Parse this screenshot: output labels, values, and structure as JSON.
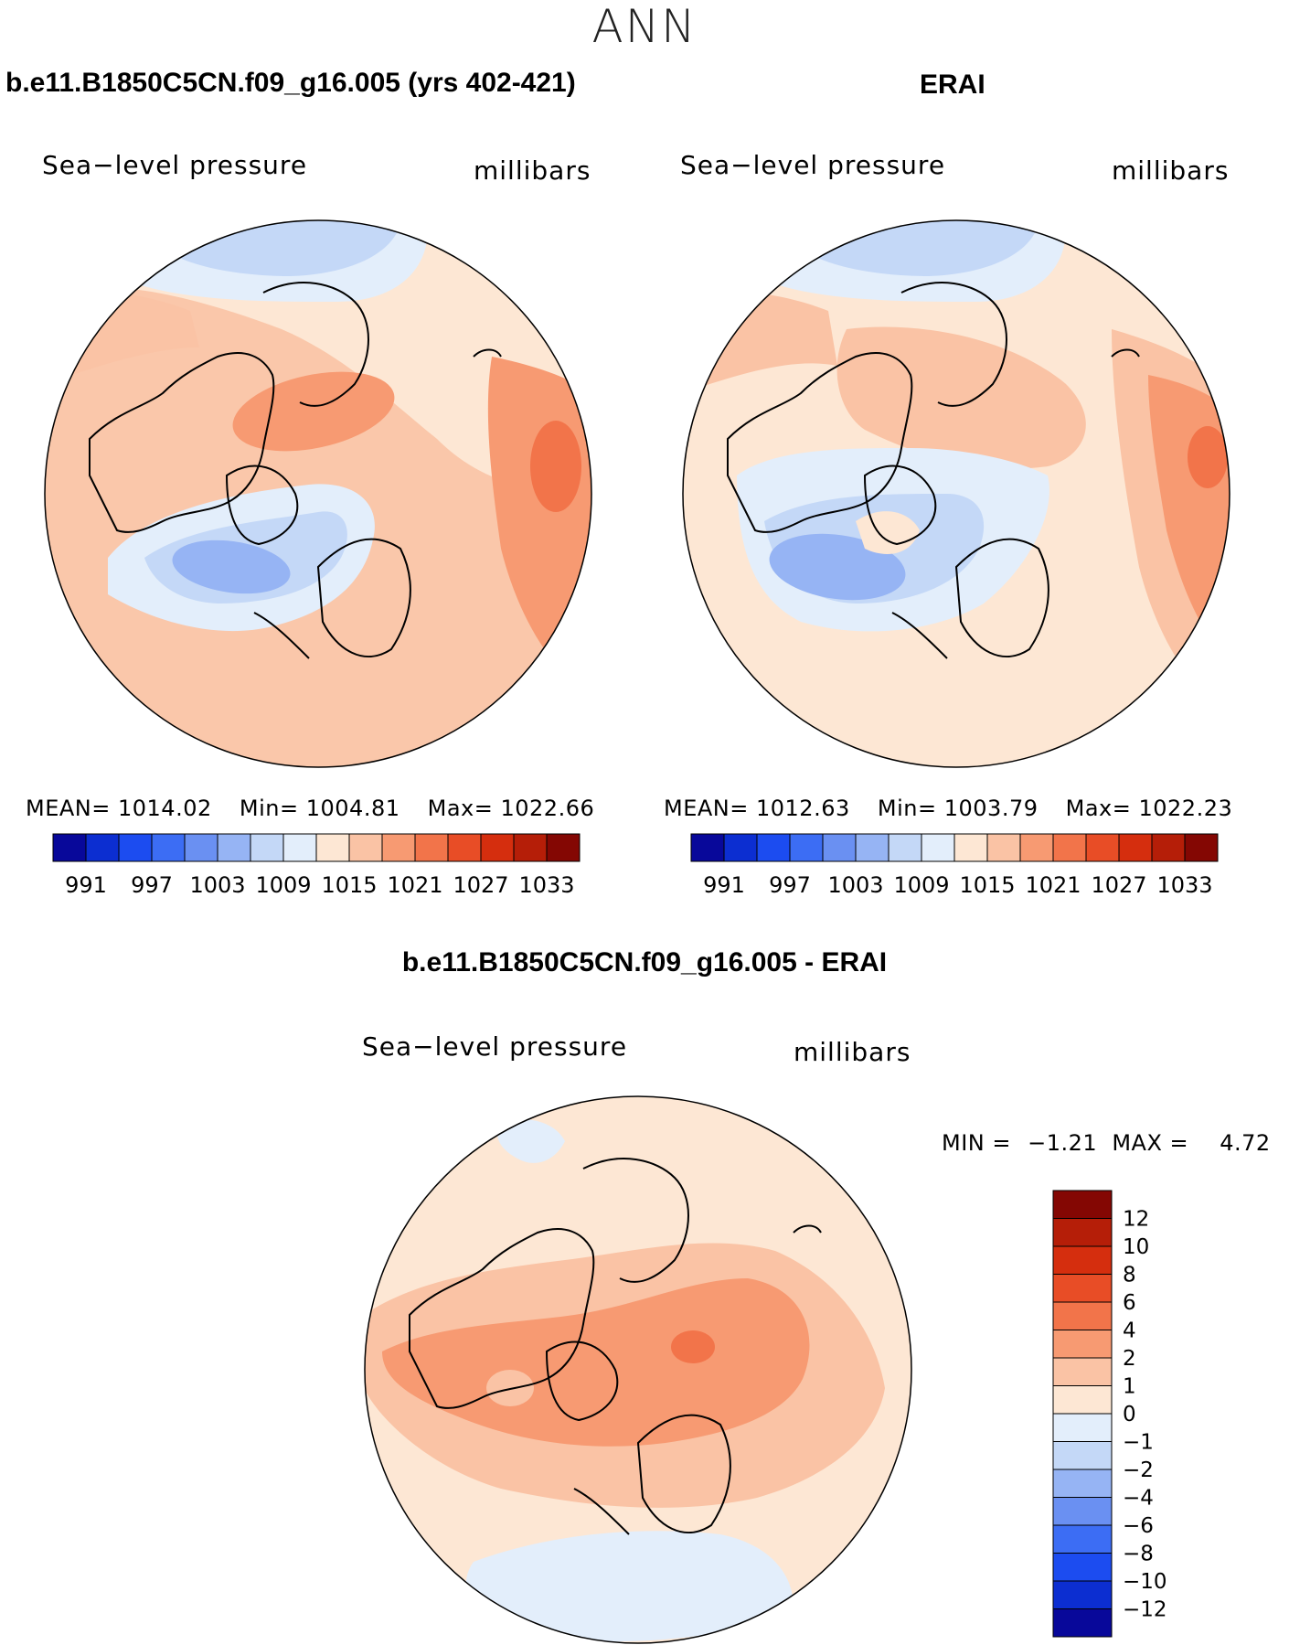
{
  "season": "ANN",
  "chart_data": [
    {
      "type": "heatmap",
      "projection": "north-polar-stereographic",
      "title": "b.e11.B1850C5CN.f09_g16.005 (yrs 402-421)",
      "variable": "Sea−level pressure",
      "units": "millibars",
      "stats": {
        "mean_label": "MEAN=",
        "mean": "1014.02",
        "min_label": "Min=",
        "min": "1004.81",
        "max_label": "Max=",
        "max": "1022.66"
      },
      "colorbar": {
        "orientation": "horizontal",
        "tick_labels": [
          "991",
          "997",
          "1003",
          "1009",
          "1015",
          "1021",
          "1027",
          "1033"
        ],
        "colors": [
          "#08089a",
          "#0c2ed1",
          "#1c4cf0",
          "#3c6df4",
          "#6a90f2",
          "#96b4f4",
          "#c4d8f7",
          "#e3eefb",
          "#fde7d4",
          "#fac3a5",
          "#f79a72",
          "#f2744a",
          "#e84d26",
          "#d52e0e",
          "#b51e08",
          "#840703"
        ]
      }
    },
    {
      "type": "heatmap",
      "projection": "north-polar-stereographic",
      "title": "ERAI",
      "variable": "Sea−level pressure",
      "units": "millibars",
      "stats": {
        "mean_label": "MEAN=",
        "mean": "1012.63",
        "min_label": "Min=",
        "min": "1003.79",
        "max_label": "Max=",
        "max": "1022.23"
      },
      "colorbar": {
        "orientation": "horizontal",
        "tick_labels": [
          "991",
          "997",
          "1003",
          "1009",
          "1015",
          "1021",
          "1027",
          "1033"
        ],
        "colors": [
          "#08089a",
          "#0c2ed1",
          "#1c4cf0",
          "#3c6df4",
          "#6a90f2",
          "#96b4f4",
          "#c4d8f7",
          "#e3eefb",
          "#fde7d4",
          "#fac3a5",
          "#f79a72",
          "#f2744a",
          "#e84d26",
          "#d52e0e",
          "#b51e08",
          "#840703"
        ]
      }
    },
    {
      "type": "heatmap",
      "projection": "north-polar-stereographic",
      "title": "b.e11.B1850C5CN.f09_g16.005 - ERAI",
      "variable": "Sea−level pressure",
      "units": "millibars",
      "stats": {
        "min_label": "MIN =",
        "min": "−1.21",
        "max_label": "MAX =",
        "max": "4.72"
      },
      "colorbar": {
        "orientation": "vertical",
        "tick_labels": [
          "12",
          "10",
          "8",
          "6",
          "4",
          "2",
          "1",
          "0",
          "−1",
          "−2",
          "−4",
          "−6",
          "−8",
          "−10",
          "−12"
        ],
        "colors": [
          "#840703",
          "#b51e08",
          "#d52e0e",
          "#e84d26",
          "#f2744a",
          "#f79a72",
          "#fac3a5",
          "#fde7d4",
          "#e3eefb",
          "#c4d8f7",
          "#96b4f4",
          "#6a90f2",
          "#3c6df4",
          "#1c4cf0",
          "#0c2ed1",
          "#08089a"
        ]
      }
    }
  ]
}
